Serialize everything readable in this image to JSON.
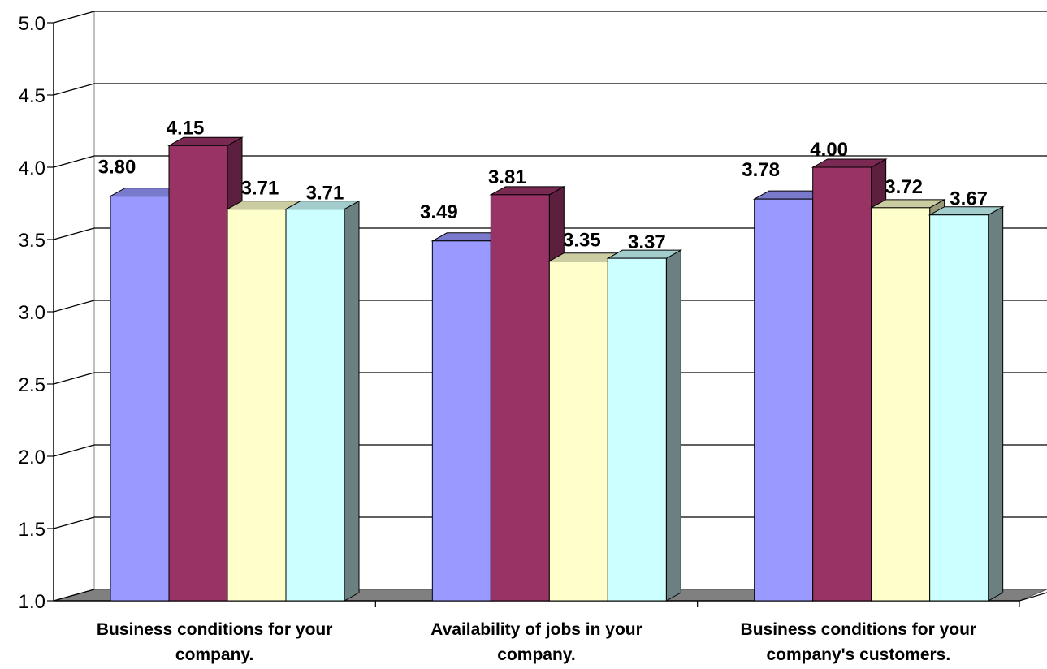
{
  "chart_data": {
    "type": "bar",
    "title": "",
    "xlabel": "",
    "ylabel": "",
    "ylim": [
      1.0,
      5.0
    ],
    "yticks": [
      "1.0",
      "1.5",
      "2.0",
      "2.5",
      "3.0",
      "3.5",
      "4.0",
      "4.5",
      "5.0"
    ],
    "grid": true,
    "three_d": true,
    "categories": [
      [
        "Business conditions for your",
        "company."
      ],
      [
        "Availability of jobs in your",
        "company."
      ],
      [
        "Business conditions for your",
        "company's customers."
      ]
    ],
    "series": [
      {
        "color": "#9999ff",
        "values": [
          3.8,
          3.49,
          3.78
        ],
        "labels": [
          "3.80",
          "3.49",
          "3.78"
        ]
      },
      {
        "color": "#993366",
        "values": [
          4.15,
          3.81,
          4.0
        ],
        "labels": [
          "4.15",
          "3.81",
          "4.00"
        ]
      },
      {
        "color": "#ffffcc",
        "values": [
          3.71,
          3.35,
          3.72
        ],
        "labels": [
          "3.71",
          "3.35",
          "3.72"
        ]
      },
      {
        "color": "#ccffff",
        "values": [
          3.71,
          3.37,
          3.67
        ],
        "labels": [
          "3.71",
          "3.37",
          "3.67"
        ]
      }
    ]
  }
}
